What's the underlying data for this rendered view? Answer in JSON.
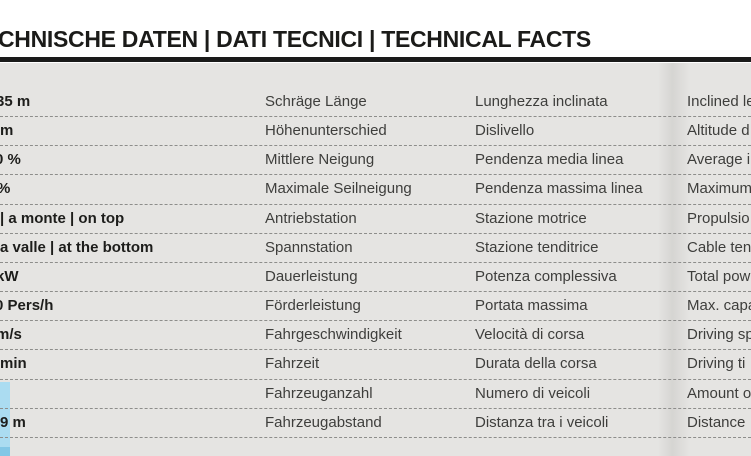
{
  "header": {
    "title": "CHNISCHE DATEN | DATI TECNICI | TECHNICAL FACTS"
  },
  "colors": {
    "accent_blue": "#abdcf1",
    "accent_blue_dark": "#83c7e6",
    "table_background": "#e5e4e2",
    "rule_black": "#1a1a1a"
  },
  "table": {
    "rows": [
      {
        "value": "35 m",
        "de": "Schräge Länge",
        "it": "Lunghezza inclinata",
        "en": "Inclined le"
      },
      {
        "value": "m",
        "de": "Höhenunterschied",
        "it": "Dislivello",
        "en": "Altitude d"
      },
      {
        "value": "0 %",
        "de": "Mittlere Neigung",
        "it": "Pendenza media linea",
        "en": "Average i"
      },
      {
        "value": "%",
        "de": "Maximale Seilneigung",
        "it": "Pendenza massima linea",
        "en": "Maximum"
      },
      {
        "value": "| a monte | on top",
        "de": "Antriebstation",
        "it": "Stazione motrice",
        "en": "Propulsio"
      },
      {
        "value": "a valle | at the bottom",
        "de": "Spannstation",
        "it": "Stazione tenditrice",
        "en": "Cable ten"
      },
      {
        "value": "kW",
        "de": "Dauerleistung",
        "it": "Potenza complessiva",
        "en": "Total pow"
      },
      {
        "value": "0 Pers/h",
        "de": "Förderleistung",
        "it": "Portata massima",
        "en": "Max. capa"
      },
      {
        "value": "m/s",
        "de": "Fahrgeschwindigkeit",
        "it": "Velocità di corsa",
        "en": "Driving sp"
      },
      {
        "value": "min",
        "de": "Fahrzeit",
        "it": "Durata della corsa",
        "en": "Driving ti"
      },
      {
        "value": "",
        "de": "Fahrzeuganzahl",
        "it": "Numero di veicoli",
        "en": "Amount o"
      },
      {
        "value": "9 m",
        "de": "Fahrzeugabstand",
        "it": "Distanza tra i veicoli",
        "en": "Distance"
      }
    ]
  }
}
